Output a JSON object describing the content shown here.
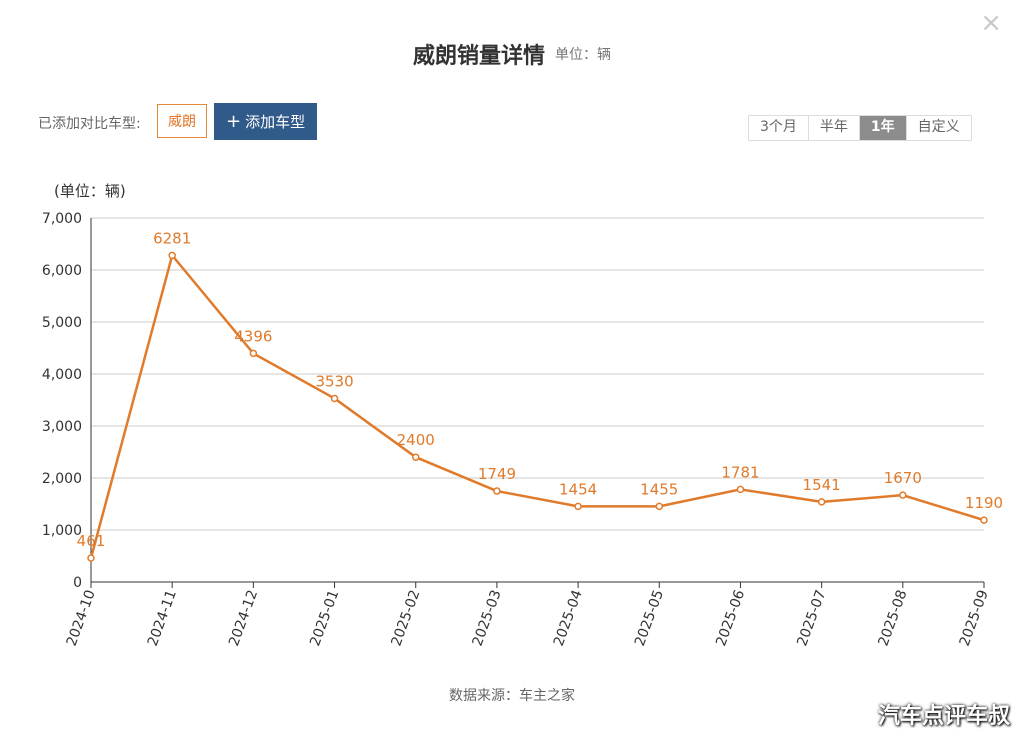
{
  "header": {
    "title": "威朗销量详情",
    "unit": "单位：辆",
    "close": "×"
  },
  "compare": {
    "label": "已添加对比车型:",
    "model": "威朗",
    "add_plus": "+",
    "add_label": "添加车型"
  },
  "ranges": [
    "3个月",
    "半年",
    "1年",
    "自定义"
  ],
  "active_range": "1年",
  "footer": {
    "source_label": "数据来源：",
    "source_name": "车主之家",
    "watermark": "汽车点评车叔"
  },
  "colors": {
    "line": "#e07b2c",
    "label": "#e07b2c",
    "grid": "#cccccc"
  },
  "chart_data": {
    "type": "line",
    "yaxis_unit_label": "(单位：辆)",
    "x": [
      "2024-10",
      "2024-11",
      "2024-12",
      "2025-01",
      "2025-02",
      "2025-03",
      "2025-04",
      "2025-05",
      "2025-06",
      "2025-07",
      "2025-08",
      "2025-09"
    ],
    "series": [
      {
        "values": [
          461,
          6281,
          4396,
          3530,
          2400,
          1749,
          1454,
          1455,
          1781,
          1541,
          1670,
          1190
        ]
      }
    ],
    "yticks": [
      "0",
      "1,000",
      "2,000",
      "3,000",
      "4,000",
      "5,000",
      "6,000",
      "7,000"
    ],
    "ylim": [
      0,
      7000
    ],
    "grid": true,
    "data_labels": true
  }
}
